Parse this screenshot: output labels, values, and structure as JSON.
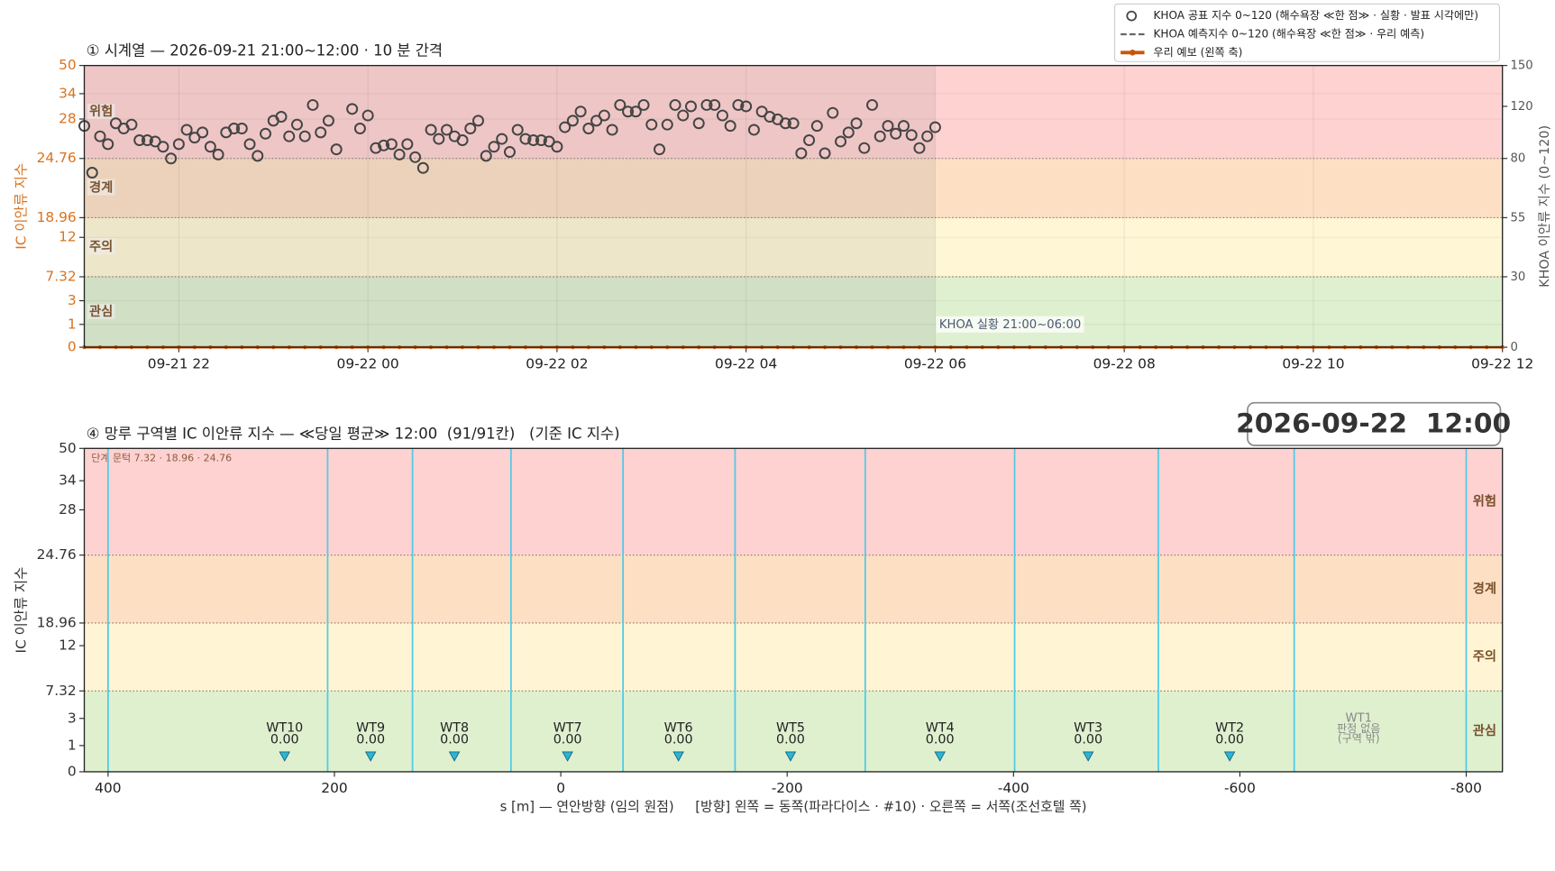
{
  "chart_data": [
    {
      "type": "scatter",
      "title": "① 시계열 — 2026-09-21 21:00~12:00 · 10 분 간격",
      "ylabel": "IC 이안류 지수",
      "y2label": "KHOA 이안류 지수 (0~120)",
      "xlim": [
        "09-21 21:00",
        "09-22 12:00"
      ],
      "xticks": [
        {
          "value": "09-21 22:00",
          "label": "09-21 22"
        },
        {
          "value": "09-22 00:00",
          "label": "09-22 00"
        },
        {
          "value": "09-22 02:00",
          "label": "09-22 02"
        },
        {
          "value": "09-22 04:00",
          "label": "09-22 04"
        },
        {
          "value": "09-22 06:00",
          "label": "09-22 06"
        },
        {
          "value": "09-22 08:00",
          "label": "09-22 08"
        },
        {
          "value": "09-22 10:00",
          "label": "09-22 10"
        },
        {
          "value": "09-22 12:00",
          "label": "09-22 12"
        }
      ],
      "ylim": [
        0,
        50
      ],
      "yticks": [
        0,
        1,
        3,
        7.32,
        12,
        18.96,
        24.76,
        28,
        34,
        50
      ],
      "y2lim": [
        0,
        150
      ],
      "y2ticks": [
        0,
        30,
        55,
        80,
        120,
        150
      ],
      "thresholds": [
        7.32,
        18.96,
        24.76
      ],
      "bands": [
        {
          "label": "관심",
          "color": "#dff0d0"
        },
        {
          "label": "주의",
          "color": "#fff6d5"
        },
        {
          "label": "경계",
          "color": "#fde0c4"
        },
        {
          "label": "위험",
          "color": "#ffd2d2"
        }
      ],
      "observed_span": [
        "09-21 21:00",
        "09-22 06:00"
      ],
      "observed_label": "KHOA 실황 21:00~06:00",
      "grid": true,
      "series": [
        {
          "name": "KHOA 공표 지수 0~120 (해수욕장 ≪한 점≫ · 실황 · 발표 시각에만)",
          "style": "circle",
          "color": "#444444",
          "axis": "y2",
          "x": [
            "09-21 21:00",
            "09-21 21:05",
            "09-21 21:10",
            "09-21 21:15",
            "09-21 21:20",
            "09-21 21:25",
            "09-21 21:30",
            "09-21 21:35",
            "09-21 21:40",
            "09-21 21:45",
            "09-21 21:50",
            "09-21 21:55",
            "09-21 22:00",
            "09-21 22:05",
            "09-21 22:10",
            "09-21 22:15",
            "09-21 22:20",
            "09-21 22:25",
            "09-21 22:30",
            "09-21 22:35",
            "09-21 22:40",
            "09-21 22:45",
            "09-21 22:50",
            "09-21 22:55",
            "09-21 23:00",
            "09-21 23:05",
            "09-21 23:10",
            "09-21 23:15",
            "09-21 23:20",
            "09-21 23:25",
            "09-21 23:30",
            "09-21 23:35",
            "09-21 23:40",
            "09-21 23:45",
            "09-21 23:50",
            "09-21 23:55",
            "09-22 00:00",
            "09-22 00:05",
            "09-22 00:10",
            "09-22 00:15",
            "09-22 00:20",
            "09-22 00:25",
            "09-22 00:30",
            "09-22 00:35",
            "09-22 00:40",
            "09-22 00:45",
            "09-22 00:50",
            "09-22 00:55",
            "09-22 01:00",
            "09-22 01:05",
            "09-22 01:10",
            "09-22 01:15",
            "09-22 01:20",
            "09-22 01:25",
            "09-22 01:30",
            "09-22 01:35",
            "09-22 01:40",
            "09-22 01:45",
            "09-22 01:50",
            "09-22 01:55",
            "09-22 02:00",
            "09-22 02:05",
            "09-22 02:10",
            "09-22 02:15",
            "09-22 02:20",
            "09-22 02:25",
            "09-22 02:30",
            "09-22 02:35",
            "09-22 02:40",
            "09-22 02:45",
            "09-22 02:50",
            "09-22 02:55",
            "09-22 03:00",
            "09-22 03:05",
            "09-22 03:10",
            "09-22 03:15",
            "09-22 03:20",
            "09-22 03:25",
            "09-22 03:30",
            "09-22 03:35",
            "09-22 03:40",
            "09-22 03:45",
            "09-22 03:50",
            "09-22 03:55",
            "09-22 04:00",
            "09-22 04:05",
            "09-22 04:10",
            "09-22 04:15",
            "09-22 04:20",
            "09-22 04:25",
            "09-22 04:30",
            "09-22 04:35",
            "09-22 04:40",
            "09-22 04:45",
            "09-22 04:50",
            "09-22 04:55",
            "09-22 05:00",
            "09-22 05:05",
            "09-22 05:10",
            "09-22 05:15",
            "09-22 05:20",
            "09-22 05:25",
            "09-22 05:30",
            "09-22 05:35",
            "09-22 05:40",
            "09-22 05:45",
            "09-22 05:50",
            "09-22 05:55",
            "09-22 06:00"
          ],
          "values": [
            105,
            74,
            97,
            91,
            107,
            103,
            106,
            94,
            94,
            93,
            89,
            80,
            91,
            102,
            96,
            100,
            89,
            83,
            100,
            103,
            103,
            91,
            82,
            99,
            109,
            112,
            97,
            106,
            97,
            121,
            100,
            109,
            87,
            null,
            118,
            103,
            113,
            88,
            90,
            91,
            83,
            91,
            81,
            76,
            102,
            95,
            102,
            97,
            94,
            103,
            109,
            82,
            89,
            95,
            85,
            102,
            95,
            94,
            94,
            93,
            89,
            104,
            109,
            116,
            103,
            109,
            113,
            102,
            121,
            116,
            116,
            121,
            106,
            87,
            106,
            121,
            113,
            120,
            107,
            121,
            121,
            113,
            105,
            121,
            120,
            102,
            116,
            112,
            110,
            107,
            107,
            84,
            94,
            105,
            84,
            115,
            93,
            100,
            107,
            88,
            121,
            97,
            105,
            99,
            105,
            98,
            88,
            97,
            104
          ]
        },
        {
          "name": "KHOA 예측지수 0~120 (해수욕장 ≪한 점≫ · 우리 예측)",
          "style": "dashed",
          "color": "#666666",
          "axis": "y2",
          "x": [],
          "values": []
        },
        {
          "name": "우리 예보 (왼쪽 축)",
          "style": "line",
          "color": "#c8560a",
          "axis": "y",
          "x": [
            "09-21 21:00",
            "09-21 21:10",
            "09-21 21:20",
            "09-21 21:30",
            "09-21 21:40",
            "09-21 21:50",
            "09-21 22:00",
            "09-21 22:10",
            "09-21 22:20",
            "09-21 22:30",
            "09-21 22:40",
            "09-21 22:50",
            "09-21 23:00",
            "09-21 23:10",
            "09-21 23:20",
            "09-21 23:30",
            "09-21 23:40",
            "09-21 23:50",
            "09-22 00:00",
            "09-22 00:10",
            "09-22 00:20",
            "09-22 00:30",
            "09-22 00:40",
            "09-22 00:50",
            "09-22 01:00",
            "09-22 01:10",
            "09-22 01:20",
            "09-22 01:30",
            "09-22 01:40",
            "09-22 01:50",
            "09-22 02:00",
            "09-22 02:10",
            "09-22 02:20",
            "09-22 02:30",
            "09-22 02:40",
            "09-22 02:50",
            "09-22 03:00",
            "09-22 03:10",
            "09-22 03:20",
            "09-22 03:30",
            "09-22 03:40",
            "09-22 03:50",
            "09-22 04:00",
            "09-22 04:10",
            "09-22 04:20",
            "09-22 04:30",
            "09-22 04:40",
            "09-22 04:50",
            "09-22 05:00",
            "09-22 05:10",
            "09-22 05:20",
            "09-22 05:30",
            "09-22 05:40",
            "09-22 05:50",
            "09-22 06:00",
            "09-22 06:10",
            "09-22 06:20",
            "09-22 06:30",
            "09-22 06:40",
            "09-22 06:50",
            "09-22 07:00",
            "09-22 07:10",
            "09-22 07:20",
            "09-22 07:30",
            "09-22 07:40",
            "09-22 07:50",
            "09-22 08:00",
            "09-22 08:10",
            "09-22 08:20",
            "09-22 08:30",
            "09-22 08:40",
            "09-22 08:50",
            "09-22 09:00",
            "09-22 09:10",
            "09-22 09:20",
            "09-22 09:30",
            "09-22 09:40",
            "09-22 09:50",
            "09-22 10:00",
            "09-22 10:10",
            "09-22 10:20",
            "09-22 10:30",
            "09-22 10:40",
            "09-22 10:50",
            "09-22 11:00",
            "09-22 11:10",
            "09-22 11:20",
            "09-22 11:30",
            "09-22 11:40",
            "09-22 11:50",
            "09-22 12:00"
          ],
          "values": [
            0,
            0,
            0,
            0,
            0,
            0,
            0,
            0,
            0,
            0,
            0,
            0,
            0,
            0,
            0,
            0,
            0,
            0,
            0,
            0,
            0,
            0,
            0,
            0,
            0,
            0,
            0,
            0,
            0,
            0,
            0,
            0,
            0,
            0,
            0,
            0,
            0,
            0,
            0,
            0,
            0,
            0,
            0,
            0,
            0,
            0,
            0,
            0,
            0,
            0,
            0,
            0,
            0,
            0,
            0,
            0,
            0,
            0,
            0,
            0,
            0,
            0,
            0,
            0,
            0,
            0,
            0,
            0,
            0,
            0,
            0,
            0,
            0,
            0,
            0,
            0,
            0,
            0,
            0,
            0,
            0,
            0,
            0,
            0,
            0,
            0,
            0,
            0,
            0,
            0,
            0
          ]
        }
      ]
    },
    {
      "type": "zones",
      "title": "④ 망루 구역별 IC 이안류 지수 — ≪당일 평균≫ 12:00  (91/91칸)   (기준 IC 지수)",
      "ylabel": "IC 이안류 지수",
      "xlabel": "s [m] — 연안방향 (임의 원점)     [방향] 왼쪽 = 동쪽(파라다이스 · #10) · 오른쪽 = 서쪽(조선호텔 쪽)",
      "annotation": "단계 문턱 7.32 · 18.96 · 24.76",
      "timestamp": "2026-09-22  12:00",
      "xlim": [
        421,
        -832
      ],
      "xticks": [
        400,
        200,
        0,
        -200,
        -400,
        -600,
        -800
      ],
      "ylim": [
        0,
        50
      ],
      "yticks": [
        0,
        1,
        3,
        7.32,
        12,
        18.96,
        24.76,
        28,
        34,
        50
      ],
      "thresholds": [
        7.32,
        18.96,
        24.76
      ],
      "bands": [
        {
          "label": "관심",
          "color": "#dff0cf"
        },
        {
          "label": "주의",
          "color": "#fff5d5"
        },
        {
          "label": "경계",
          "color": "#fde0c4"
        },
        {
          "label": "위험",
          "color": "#ffd2d2"
        }
      ],
      "boundaries": [
        400,
        206,
        131,
        44,
        -55,
        -154,
        -269,
        -401,
        -528,
        -648,
        -800
      ],
      "boundary_color": "#4fcbe6",
      "marker_color": "#29b6d6",
      "zones": [
        {
          "name": "WT10",
          "s": 244,
          "value": 0,
          "value_label": "0.00"
        },
        {
          "name": "WT9",
          "s": 168,
          "value": 0,
          "value_label": "0.00"
        },
        {
          "name": "WT8",
          "s": 94,
          "value": 0,
          "value_label": "0.00"
        },
        {
          "name": "WT7",
          "s": -6,
          "value": 0,
          "value_label": "0.00"
        },
        {
          "name": "WT6",
          "s": -104,
          "value": 0,
          "value_label": "0.00"
        },
        {
          "name": "WT5",
          "s": -203,
          "value": 0,
          "value_label": "0.00"
        },
        {
          "name": "WT4",
          "s": -335,
          "value": 0,
          "value_label": "0.00"
        },
        {
          "name": "WT3",
          "s": -466,
          "value": 0,
          "value_label": "0.00"
        },
        {
          "name": "WT2",
          "s": -591,
          "value": 0,
          "value_label": "0.00"
        },
        {
          "name": "WT1",
          "s": -705,
          "value": null,
          "status": [
            "판정 없음",
            "(구역 밖)"
          ]
        }
      ]
    }
  ]
}
